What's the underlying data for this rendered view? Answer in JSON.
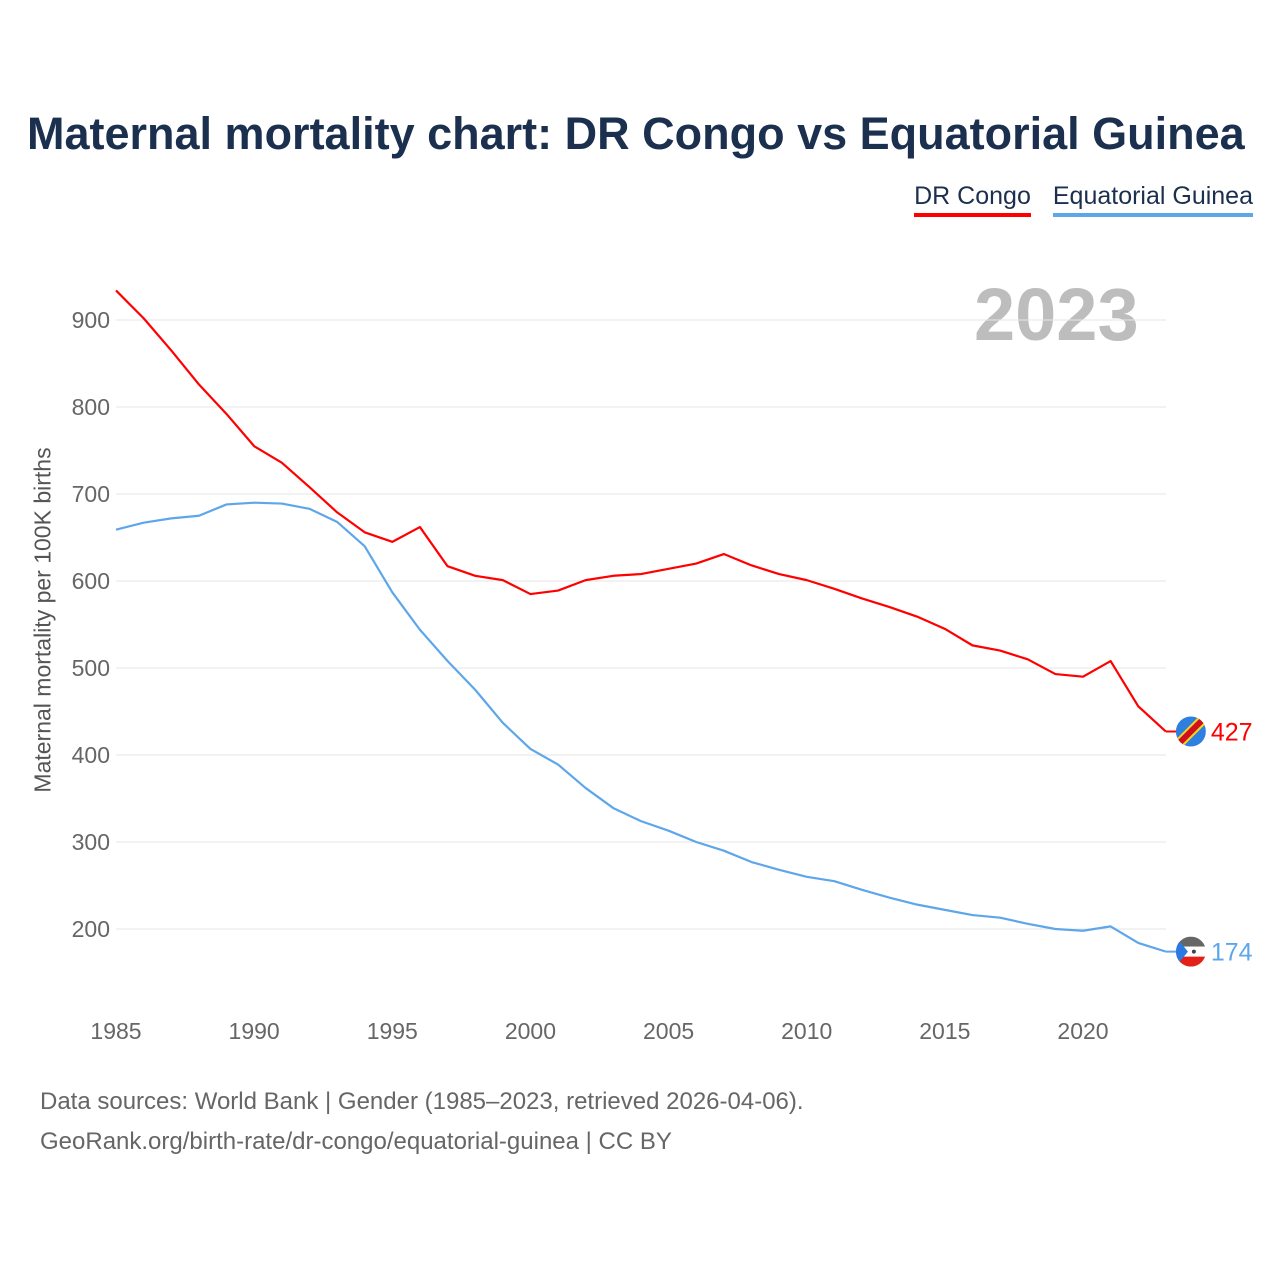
{
  "chart_data": {
    "type": "line",
    "title": "Maternal mortality chart: DR Congo vs Equatorial Guinea",
    "ylabel": "Maternal mortality per 100K births",
    "xlabel": "",
    "year_label": "2023",
    "x": [
      1985,
      1986,
      1987,
      1988,
      1989,
      1990,
      1991,
      1992,
      1993,
      1994,
      1995,
      1996,
      1997,
      1998,
      1999,
      2000,
      2001,
      2002,
      2003,
      2004,
      2005,
      2006,
      2007,
      2008,
      2009,
      2010,
      2011,
      2012,
      2013,
      2014,
      2015,
      2016,
      2017,
      2018,
      2019,
      2020,
      2021,
      2022,
      2023
    ],
    "xlim": [
      1985,
      2023
    ],
    "ylim": [
      130,
      940
    ],
    "xticks": [
      "1985",
      "1990",
      "1995",
      "2000",
      "2005",
      "2010",
      "2015",
      "2020"
    ],
    "yticks": [
      "200",
      "300",
      "400",
      "500",
      "600",
      "700",
      "800",
      "900"
    ],
    "grid": true,
    "legend_position": "top-right",
    "series": [
      {
        "name": "DR Congo",
        "color": "#ff0000",
        "end_label": "427",
        "flag": "dr-congo-flag",
        "values": [
          934,
          902,
          865,
          826,
          792,
          755,
          736,
          708,
          679,
          656,
          645,
          662,
          617,
          606,
          601,
          585,
          589,
          601,
          606,
          608,
          614,
          620,
          631,
          618,
          608,
          601,
          591,
          580,
          570,
          559,
          545,
          526,
          520,
          510,
          493,
          490,
          508,
          456,
          427
        ]
      },
      {
        "name": "Equatorial Guinea",
        "color": "#5ea6ea",
        "end_label": "174",
        "flag": "equatorial-guinea-flag",
        "values": [
          659,
          667,
          672,
          675,
          688,
          690,
          689,
          683,
          668,
          640,
          587,
          544,
          508,
          475,
          437,
          407,
          389,
          362,
          339,
          324,
          313,
          300,
          290,
          277,
          268,
          260,
          255,
          245,
          236,
          228,
          222,
          216,
          213,
          206,
          200,
          198,
          203,
          184,
          174
        ]
      }
    ]
  },
  "footer": {
    "line1": "Data sources: World Bank | Gender (1985–2023, retrieved 2026-04-06).",
    "line2": "GeoRank.org/birth-rate/dr-congo/equatorial-guinea | CC BY"
  }
}
